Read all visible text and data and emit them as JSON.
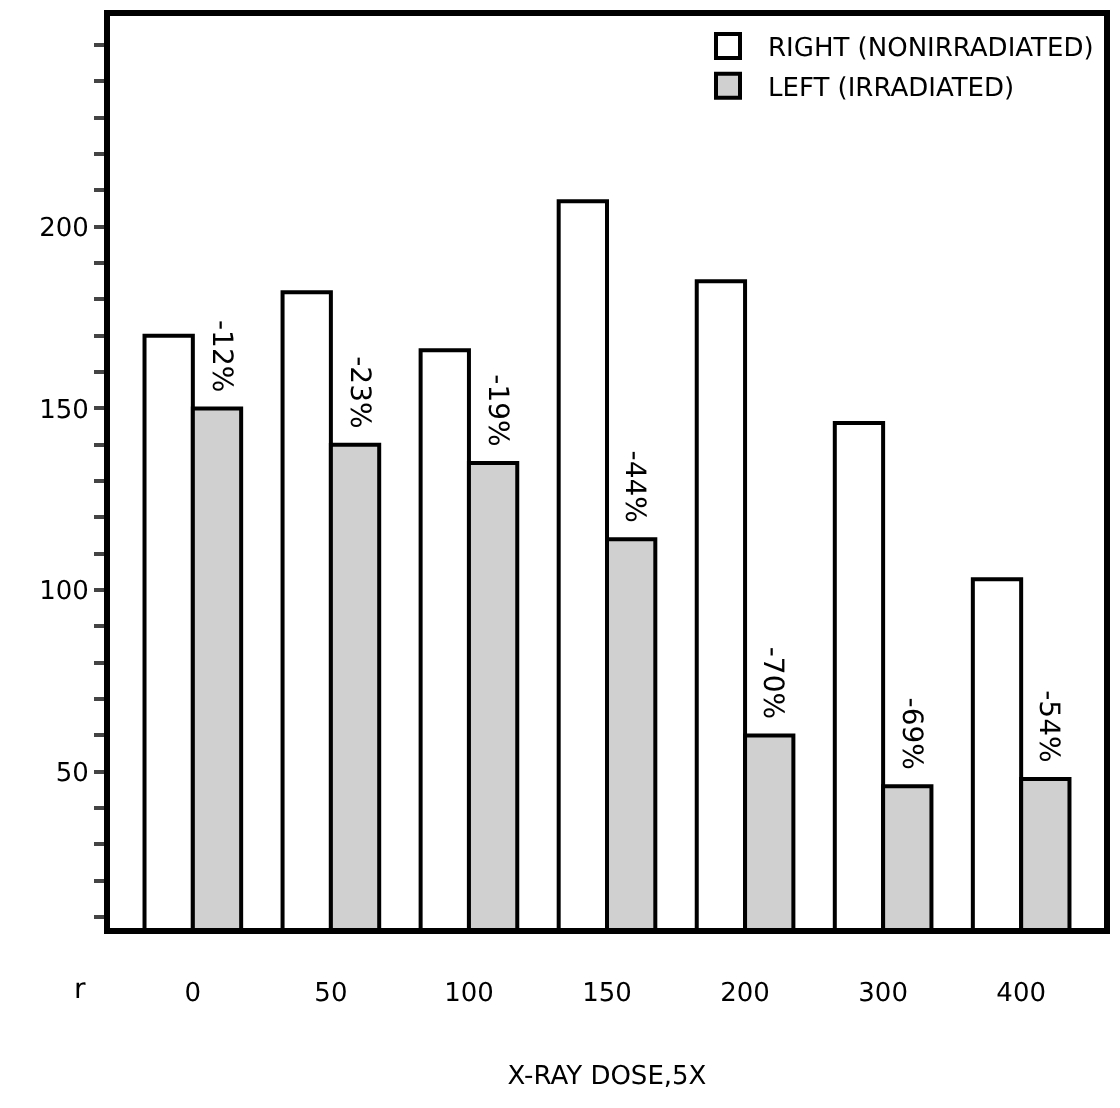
{
  "chart_data": {
    "type": "bar",
    "xlabel": "X-RAY DOSE,5X",
    "annotations": [
      "r",
      {
        "text": "-12%",
        "x": "0",
        "y": 150
      },
      {
        "text": "-23%",
        "x": "50",
        "y": 140
      },
      {
        "text": "-19%",
        "x": "100",
        "y": 135
      },
      {
        "text": "-44%",
        "x": "150",
        "y": 114
      },
      {
        "text": "-70%",
        "x": "200",
        "y": 60
      },
      {
        "text": "-69%",
        "x": "300",
        "y": 46
      },
      {
        "text": "-54%",
        "x": "400",
        "y": 48
      }
    ],
    "categories": [
      "0",
      "50",
      "100",
      "150",
      "200",
      "300",
      "400"
    ],
    "series": [
      {
        "name": "RIGHT (NONIRRADIATED)",
        "color": "#ffffff",
        "values": [
          170,
          182,
          166,
          207,
          185,
          146,
          103
        ]
      },
      {
        "name": "LEFT (IRRADIATED)",
        "color": "#d0d0d0",
        "values": [
          150,
          140,
          135,
          114,
          60,
          46,
          48
        ]
      }
    ],
    "ylim": [
      7,
      258
    ],
    "yticks": [
      {
        "value": 10,
        "label": null
      },
      {
        "value": 20,
        "label": null
      },
      {
        "value": 30,
        "label": null
      },
      {
        "value": 40,
        "label": null
      },
      50,
      {
        "value": 60,
        "label": null
      },
      {
        "value": 70,
        "label": null
      },
      {
        "value": 80,
        "label": null
      },
      {
        "value": 90,
        "label": null
      },
      100,
      {
        "value": 110,
        "label": null
      },
      {
        "value": 120,
        "label": null
      },
      {
        "value": 130,
        "label": null
      },
      {
        "value": 140,
        "label": null
      },
      150,
      {
        "value": 160,
        "label": null
      },
      {
        "value": 170,
        "label": null
      },
      {
        "value": 180,
        "label": null
      },
      {
        "value": 190,
        "label": null
      },
      200,
      {
        "value": 210,
        "label": null
      },
      {
        "value": 220,
        "label": null
      },
      {
        "value": 230,
        "label": null
      },
      {
        "value": 240,
        "label": null
      },
      {
        "value": 250,
        "label": null
      }
    ],
    "grid": false,
    "legend": "top right"
  }
}
